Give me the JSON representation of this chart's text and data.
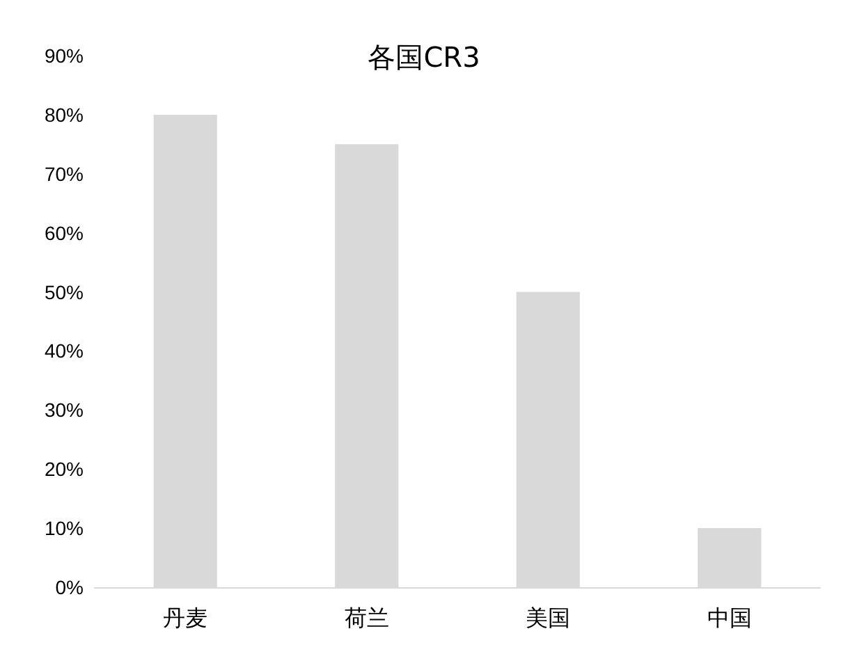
{
  "chart_data": {
    "type": "bar",
    "title": "各国CR3",
    "categories": [
      "丹麦",
      "荷兰",
      "美国",
      "中国"
    ],
    "values": [
      80,
      75,
      50,
      10
    ],
    "color": "#d9d9d9",
    "ylim": [
      0,
      90
    ],
    "yticks": [
      {
        "value": 0,
        "label": "0%"
      },
      {
        "value": 10,
        "label": "10%"
      },
      {
        "value": 20,
        "label": "20%"
      },
      {
        "value": 30,
        "label": "30%"
      },
      {
        "value": 40,
        "label": "40%"
      },
      {
        "value": 50,
        "label": "50%"
      },
      {
        "value": 60,
        "label": "60%"
      },
      {
        "value": 70,
        "label": "70%"
      },
      {
        "value": 80,
        "label": "80%"
      },
      {
        "value": 90,
        "label": "90%"
      }
    ],
    "grid": false
  }
}
